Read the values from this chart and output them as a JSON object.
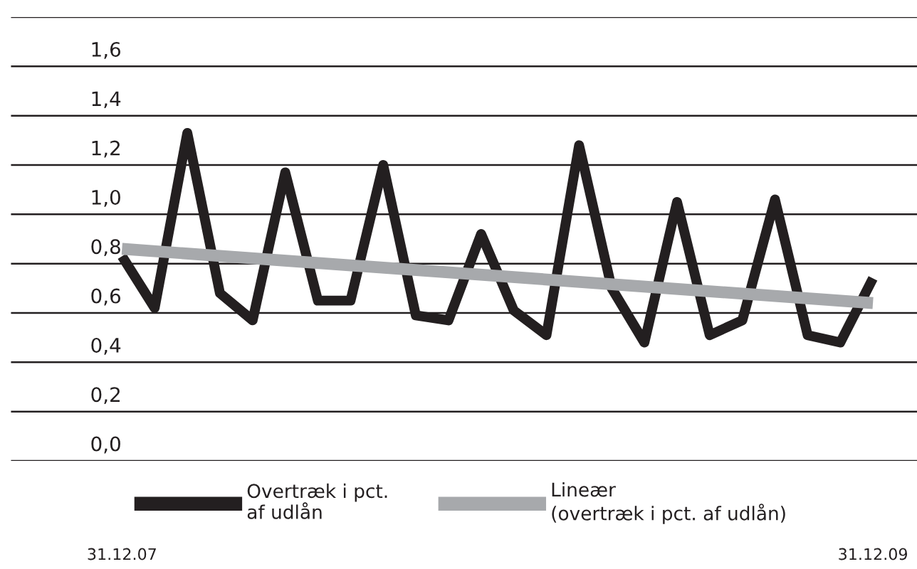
{
  "chart_data": {
    "type": "line",
    "categories": [
      "31.12.07",
      null,
      null,
      null,
      null,
      null,
      null,
      null,
      null,
      null,
      null,
      null,
      null,
      null,
      null,
      null,
      null,
      null,
      null,
      null,
      null,
      null,
      null,
      "31.12.09"
    ],
    "series": [
      {
        "name": "Overtræk i pct.\naf udlån",
        "color": "#231f20",
        "values": [
          0.83,
          0.62,
          1.33,
          0.68,
          0.57,
          1.17,
          0.65,
          0.65,
          1.2,
          0.59,
          0.57,
          0.92,
          0.61,
          0.51,
          1.28,
          0.7,
          0.48,
          1.05,
          0.51,
          0.57,
          1.06,
          0.51,
          0.48,
          0.74
        ]
      },
      {
        "name": "Lineær\n(overtræk i pct. af udlån)",
        "color": "#a7a9ac",
        "x": [
          "31.12.07",
          "31.12.09"
        ],
        "values": [
          0.86,
          0.64
        ]
      }
    ],
    "ylim": [
      0,
      1.8
    ],
    "yticks": [
      {
        "value": 0,
        "label": "0,0"
      },
      {
        "value": 0.2,
        "label": "0,2"
      },
      {
        "value": 0.4,
        "label": "0,4"
      },
      {
        "value": 0.6,
        "label": "0,6"
      },
      {
        "value": 0.8,
        "label": "0,8"
      },
      {
        "value": 1.0,
        "label": "1,0"
      },
      {
        "value": 1.2,
        "label": "1,2"
      },
      {
        "value": 1.4,
        "label": "1,4"
      },
      {
        "value": 1.6,
        "label": "1,6"
      },
      {
        "value": 1.8,
        "label": null
      }
    ],
    "grid": "y",
    "legend": "bottom",
    "marker": "none",
    "line_style": "solid"
  }
}
